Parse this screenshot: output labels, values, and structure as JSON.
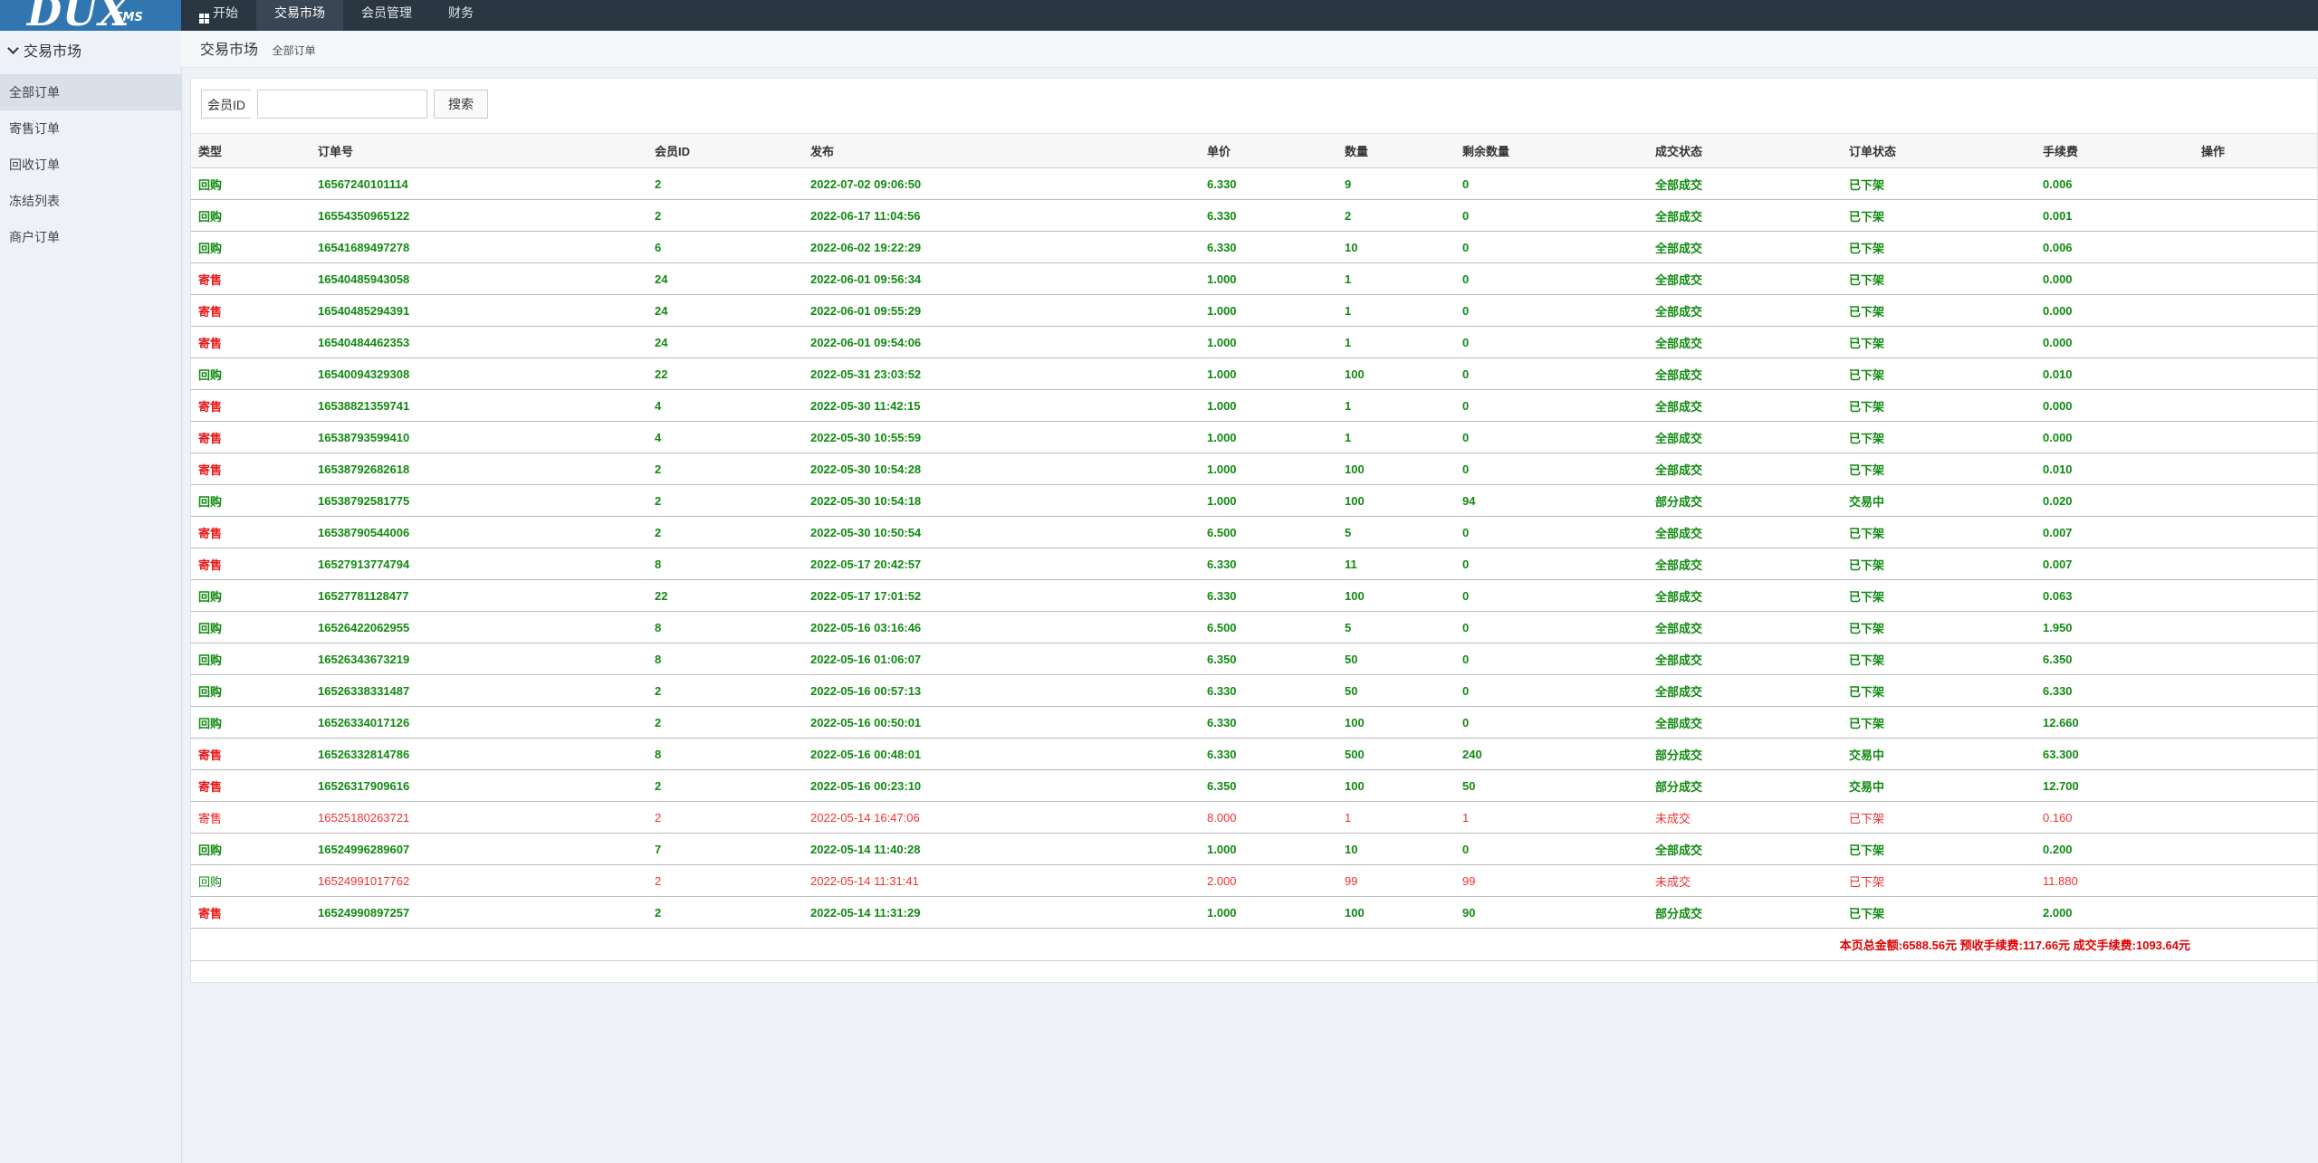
{
  "logo": {
    "main": "DUX",
    "sub": "CMS"
  },
  "topnav": [
    {
      "label": "开始",
      "active": false
    },
    {
      "label": "交易市场",
      "active": true
    },
    {
      "label": "会员管理",
      "active": false
    },
    {
      "label": "财务",
      "active": false
    }
  ],
  "sidebar": {
    "title": "交易市场",
    "items": [
      {
        "label": "全部订单",
        "active": true
      },
      {
        "label": "寄售订单",
        "active": false
      },
      {
        "label": "回收订单",
        "active": false
      },
      {
        "label": "冻结列表",
        "active": false
      },
      {
        "label": "商户订单",
        "active": false
      }
    ]
  },
  "breadcrumb": {
    "title": "交易市场",
    "sub": "全部订单"
  },
  "search": {
    "label": "会员ID",
    "value": "",
    "button": "搜索"
  },
  "table": {
    "headers": [
      "类型",
      "订单号",
      "会员ID",
      "发布",
      "单价",
      "数量",
      "剩余数量",
      "成交状态",
      "订单状态",
      "手续费",
      "操作"
    ],
    "rows": [
      {
        "type": "回购",
        "order_no": "16567240101114",
        "member_id": "2",
        "published": "2022-07-02 09:06:50",
        "price": "6.330",
        "qty": "9",
        "remaining": "0",
        "deal_status": "全部成交",
        "order_status": "已下架",
        "fee": "0.006",
        "action": ""
      },
      {
        "type": "回购",
        "order_no": "16554350965122",
        "member_id": "2",
        "published": "2022-06-17 11:04:56",
        "price": "6.330",
        "qty": "2",
        "remaining": "0",
        "deal_status": "全部成交",
        "order_status": "已下架",
        "fee": "0.001",
        "action": ""
      },
      {
        "type": "回购",
        "order_no": "16541689497278",
        "member_id": "6",
        "published": "2022-06-02 19:22:29",
        "price": "6.330",
        "qty": "10",
        "remaining": "0",
        "deal_status": "全部成交",
        "order_status": "已下架",
        "fee": "0.006",
        "action": ""
      },
      {
        "type": "寄售",
        "order_no": "16540485943058",
        "member_id": "24",
        "published": "2022-06-01 09:56:34",
        "price": "1.000",
        "qty": "1",
        "remaining": "0",
        "deal_status": "全部成交",
        "order_status": "已下架",
        "fee": "0.000",
        "action": ""
      },
      {
        "type": "寄售",
        "order_no": "16540485294391",
        "member_id": "24",
        "published": "2022-06-01 09:55:29",
        "price": "1.000",
        "qty": "1",
        "remaining": "0",
        "deal_status": "全部成交",
        "order_status": "已下架",
        "fee": "0.000",
        "action": ""
      },
      {
        "type": "寄售",
        "order_no": "16540484462353",
        "member_id": "24",
        "published": "2022-06-01 09:54:06",
        "price": "1.000",
        "qty": "1",
        "remaining": "0",
        "deal_status": "全部成交",
        "order_status": "已下架",
        "fee": "0.000",
        "action": ""
      },
      {
        "type": "回购",
        "order_no": "16540094329308",
        "member_id": "22",
        "published": "2022-05-31 23:03:52",
        "price": "1.000",
        "qty": "100",
        "remaining": "0",
        "deal_status": "全部成交",
        "order_status": "已下架",
        "fee": "0.010",
        "action": ""
      },
      {
        "type": "寄售",
        "order_no": "16538821359741",
        "member_id": "4",
        "published": "2022-05-30 11:42:15",
        "price": "1.000",
        "qty": "1",
        "remaining": "0",
        "deal_status": "全部成交",
        "order_status": "已下架",
        "fee": "0.000",
        "action": ""
      },
      {
        "type": "寄售",
        "order_no": "16538793599410",
        "member_id": "4",
        "published": "2022-05-30 10:55:59",
        "price": "1.000",
        "qty": "1",
        "remaining": "0",
        "deal_status": "全部成交",
        "order_status": "已下架",
        "fee": "0.000",
        "action": ""
      },
      {
        "type": "寄售",
        "order_no": "16538792682618",
        "member_id": "2",
        "published": "2022-05-30 10:54:28",
        "price": "1.000",
        "qty": "100",
        "remaining": "0",
        "deal_status": "全部成交",
        "order_status": "已下架",
        "fee": "0.010",
        "action": ""
      },
      {
        "type": "回购",
        "order_no": "16538792581775",
        "member_id": "2",
        "published": "2022-05-30 10:54:18",
        "price": "1.000",
        "qty": "100",
        "remaining": "94",
        "deal_status": "部分成交",
        "order_status": "交易中",
        "fee": "0.020",
        "action": ""
      },
      {
        "type": "寄售",
        "order_no": "16538790544006",
        "member_id": "2",
        "published": "2022-05-30 10:50:54",
        "price": "6.500",
        "qty": "5",
        "remaining": "0",
        "deal_status": "全部成交",
        "order_status": "已下架",
        "fee": "0.007",
        "action": ""
      },
      {
        "type": "寄售",
        "order_no": "16527913774794",
        "member_id": "8",
        "published": "2022-05-17 20:42:57",
        "price": "6.330",
        "qty": "11",
        "remaining": "0",
        "deal_status": "全部成交",
        "order_status": "已下架",
        "fee": "0.007",
        "action": ""
      },
      {
        "type": "回购",
        "order_no": "16527781128477",
        "member_id": "22",
        "published": "2022-05-17 17:01:52",
        "price": "6.330",
        "qty": "100",
        "remaining": "0",
        "deal_status": "全部成交",
        "order_status": "已下架",
        "fee": "0.063",
        "action": ""
      },
      {
        "type": "回购",
        "order_no": "16526422062955",
        "member_id": "8",
        "published": "2022-05-16 03:16:46",
        "price": "6.500",
        "qty": "5",
        "remaining": "0",
        "deal_status": "全部成交",
        "order_status": "已下架",
        "fee": "1.950",
        "action": ""
      },
      {
        "type": "回购",
        "order_no": "16526343673219",
        "member_id": "8",
        "published": "2022-05-16 01:06:07",
        "price": "6.350",
        "qty": "50",
        "remaining": "0",
        "deal_status": "全部成交",
        "order_status": "已下架",
        "fee": "6.350",
        "action": ""
      },
      {
        "type": "回购",
        "order_no": "16526338331487",
        "member_id": "2",
        "published": "2022-05-16 00:57:13",
        "price": "6.330",
        "qty": "50",
        "remaining": "0",
        "deal_status": "全部成交",
        "order_status": "已下架",
        "fee": "6.330",
        "action": ""
      },
      {
        "type": "回购",
        "order_no": "16526334017126",
        "member_id": "2",
        "published": "2022-05-16 00:50:01",
        "price": "6.330",
        "qty": "100",
        "remaining": "0",
        "deal_status": "全部成交",
        "order_status": "已下架",
        "fee": "12.660",
        "action": ""
      },
      {
        "type": "寄售",
        "order_no": "16526332814786",
        "member_id": "8",
        "published": "2022-05-16 00:48:01",
        "price": "6.330",
        "qty": "500",
        "remaining": "240",
        "deal_status": "部分成交",
        "order_status": "交易中",
        "fee": "63.300",
        "action": ""
      },
      {
        "type": "寄售",
        "order_no": "16526317909616",
        "member_id": "2",
        "published": "2022-05-16 00:23:10",
        "price": "6.350",
        "qty": "100",
        "remaining": "50",
        "deal_status": "部分成交",
        "order_status": "交易中",
        "fee": "12.700",
        "action": ""
      },
      {
        "type": "寄售",
        "order_no": "16525180263721",
        "member_id": "2",
        "published": "2022-05-14 16:47:06",
        "price": "8.000",
        "qty": "1",
        "remaining": "1",
        "deal_status": "未成交",
        "order_status": "已下架",
        "fee": "0.160",
        "action": ""
      },
      {
        "type": "回购",
        "order_no": "16524996289607",
        "member_id": "7",
        "published": "2022-05-14 11:40:28",
        "price": "1.000",
        "qty": "10",
        "remaining": "0",
        "deal_status": "全部成交",
        "order_status": "已下架",
        "fee": "0.200",
        "action": ""
      },
      {
        "type": "回购",
        "order_no": "16524991017762",
        "member_id": "2",
        "published": "2022-05-14 11:31:41",
        "price": "2.000",
        "qty": "99",
        "remaining": "99",
        "deal_status": "未成交",
        "order_status": "已下架",
        "fee": "11.880",
        "action": ""
      },
      {
        "type": "寄售",
        "order_no": "16524990897257",
        "member_id": "2",
        "published": "2022-05-14 11:31:29",
        "price": "1.000",
        "qty": "100",
        "remaining": "90",
        "deal_status": "部分成交",
        "order_status": "已下架",
        "fee": "2.000",
        "action": ""
      }
    ],
    "summary": "本页总金额:6588.56元 预收手续费:117.66元 成交手续费:1093.64元"
  },
  "colors": {
    "topbar": "#2b3643",
    "logo_bg": "#3276b1",
    "deal_green": "#118a11",
    "sell_red": "#e81b1b",
    "unfilled_red": "#f03030"
  }
}
